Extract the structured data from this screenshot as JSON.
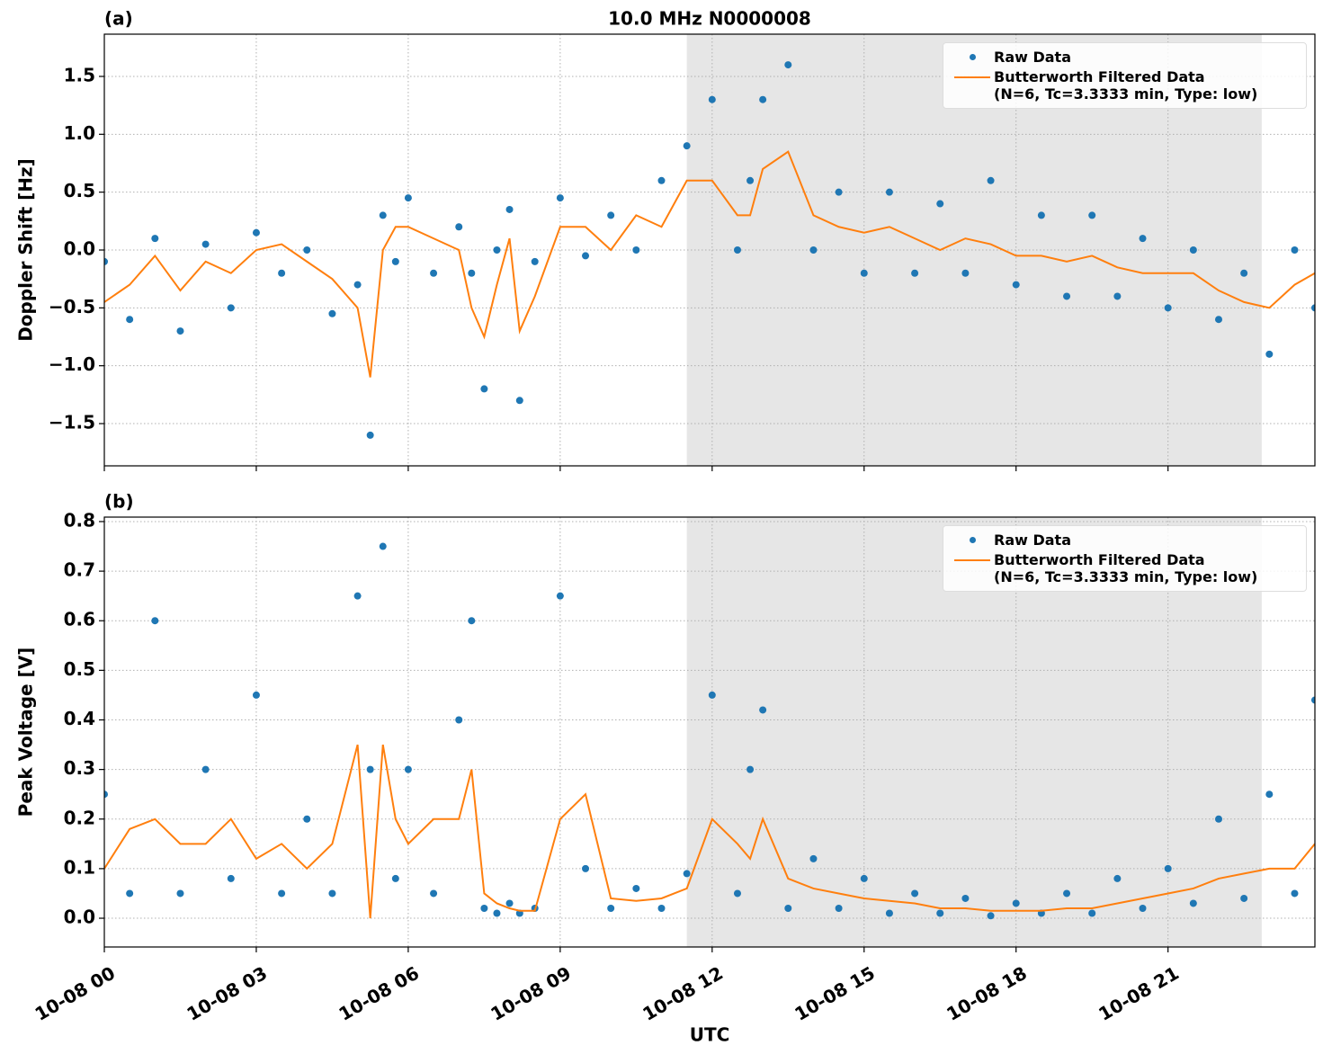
{
  "chart_data": [
    {
      "type": "line",
      "panel_label": "(a)",
      "title": "10.0 MHz N0000008",
      "ylabel": "Doppler Shift [Hz]",
      "x": [
        0,
        0.5,
        1,
        1.5,
        2,
        2.5,
        3,
        3.5,
        4,
        4.5,
        5,
        5.25,
        5.5,
        5.75,
        6,
        6.5,
        7,
        7.25,
        7.5,
        7.75,
        8,
        8.2,
        8.5,
        9,
        9.5,
        10,
        10.5,
        11,
        11.5,
        12,
        12.5,
        12.75,
        13,
        13.5,
        14,
        14.5,
        15,
        15.5,
        16,
        16.5,
        17,
        17.5,
        18,
        18.5,
        19,
        19.5,
        20,
        20.5,
        21,
        21.5,
        22,
        22.5,
        23,
        23.5,
        23.9
      ],
      "xlim": [
        0,
        23.9
      ],
      "xticks": [
        0,
        3,
        6,
        9,
        12,
        15,
        18,
        21
      ],
      "ylim": [
        -1.865,
        1.865
      ],
      "yticks": [
        {
          "value": -1.5,
          "label": "−1.5"
        },
        {
          "value": -1.0,
          "label": "−1.0"
        },
        {
          "value": -0.5,
          "label": "−0.5"
        },
        {
          "value": 0,
          "label": "0.0"
        },
        0.5,
        {
          "value": 1,
          "label": "1.0"
        },
        1.5
      ],
      "grid": true,
      "shade": [
        11.5,
        22.85
      ],
      "legend": "upper right",
      "series": [
        {
          "name": "Raw Data",
          "type": "scatter",
          "color": "#1f77b4",
          "values": [
            -0.1,
            -0.6,
            0.1,
            -0.7,
            0.05,
            -0.5,
            0.15,
            -0.2,
            0.0,
            -0.55,
            -0.3,
            -1.6,
            0.3,
            -0.1,
            0.45,
            -0.2,
            0.2,
            -0.2,
            -1.2,
            0.0,
            0.35,
            -1.3,
            -0.1,
            0.45,
            -0.05,
            0.3,
            0.0,
            0.6,
            0.9,
            1.3,
            0.0,
            0.6,
            1.3,
            1.6,
            0.0,
            0.5,
            -0.2,
            0.5,
            -0.2,
            0.4,
            -0.2,
            0.6,
            -0.3,
            0.3,
            -0.4,
            0.3,
            -0.4,
            0.1,
            -0.5,
            0.0,
            -0.6,
            -0.2,
            -0.9,
            0.0,
            -0.5
          ]
        },
        {
          "name": "Butterworth Filtered Data\n(N=6, Tc=3.3333 min, Type: low)",
          "type": "line",
          "color": "#ff7f0e",
          "values": [
            -0.45,
            -0.3,
            -0.05,
            -0.35,
            -0.1,
            -0.2,
            0.0,
            0.05,
            -0.1,
            -0.25,
            -0.5,
            -1.1,
            0.0,
            0.2,
            0.2,
            0.1,
            0.0,
            -0.5,
            -0.75,
            -0.3,
            0.1,
            -0.7,
            -0.4,
            0.2,
            0.2,
            0.0,
            0.3,
            0.2,
            0.6,
            0.6,
            0.3,
            0.3,
            0.7,
            0.85,
            0.3,
            0.2,
            0.15,
            0.2,
            0.1,
            0.0,
            0.1,
            0.05,
            -0.05,
            -0.05,
            -0.1,
            -0.05,
            -0.15,
            -0.2,
            -0.2,
            -0.2,
            -0.35,
            -0.45,
            -0.5,
            -0.3,
            -0.2
          ]
        }
      ]
    },
    {
      "type": "line",
      "panel_label": "(b)",
      "ylabel": "Peak Voltage [V]",
      "xlabel": "UTC",
      "x": [
        0,
        0.5,
        1,
        1.5,
        2,
        2.5,
        3,
        3.5,
        4,
        4.5,
        5,
        5.25,
        5.5,
        5.75,
        6,
        6.5,
        7,
        7.25,
        7.5,
        7.75,
        8,
        8.2,
        8.5,
        9,
        9.5,
        10,
        10.5,
        11,
        11.5,
        12,
        12.5,
        12.75,
        13,
        13.5,
        14,
        14.5,
        15,
        15.5,
        16,
        16.5,
        17,
        17.5,
        18,
        18.5,
        19,
        19.5,
        20,
        20.5,
        21,
        21.5,
        22,
        22.5,
        23,
        23.5,
        23.9
      ],
      "xlim": [
        0,
        23.9
      ],
      "xticks": [
        {
          "value": 0,
          "label": "10-08 00"
        },
        {
          "value": 3,
          "label": "10-08 03"
        },
        {
          "value": 6,
          "label": "10-08 06"
        },
        {
          "value": 9,
          "label": "10-08 09"
        },
        {
          "value": 12,
          "label": "10-08 12"
        },
        {
          "value": 15,
          "label": "10-08 15"
        },
        {
          "value": 18,
          "label": "10-08 18"
        },
        {
          "value": 21,
          "label": "10-08 21"
        }
      ],
      "ylim": [
        -0.058,
        0.809
      ],
      "yticks": [
        {
          "value": 0,
          "label": "0.0"
        },
        0.1,
        0.2,
        0.3,
        0.4,
        0.5,
        0.6,
        0.7,
        0.8
      ],
      "grid": true,
      "shade": [
        11.5,
        22.85
      ],
      "legend": "upper right",
      "series": [
        {
          "name": "Raw Data",
          "type": "scatter",
          "color": "#1f77b4",
          "values": [
            0.25,
            0.05,
            0.6,
            0.05,
            0.3,
            0.08,
            0.45,
            0.05,
            0.2,
            0.05,
            0.65,
            0.3,
            0.75,
            0.08,
            0.3,
            0.05,
            0.4,
            0.6,
            0.02,
            0.01,
            0.03,
            0.01,
            0.02,
            0.65,
            0.1,
            0.02,
            0.06,
            0.02,
            0.09,
            0.45,
            0.05,
            0.3,
            0.42,
            0.02,
            0.12,
            0.02,
            0.08,
            0.01,
            0.05,
            0.01,
            0.04,
            0.005,
            0.03,
            0.01,
            0.05,
            0.01,
            0.08,
            0.02,
            0.1,
            0.03,
            0.2,
            0.04,
            0.25,
            0.05,
            0.44
          ]
        },
        {
          "name": "Butterworth Filtered Data\n(N=6, Tc=3.3333 min, Type: low)",
          "type": "line",
          "color": "#ff7f0e",
          "values": [
            0.1,
            0.18,
            0.2,
            0.15,
            0.15,
            0.2,
            0.12,
            0.15,
            0.1,
            0.15,
            0.35,
            0.0,
            0.35,
            0.2,
            0.15,
            0.2,
            0.2,
            0.3,
            0.05,
            0.03,
            0.02,
            0.015,
            0.015,
            0.2,
            0.25,
            0.04,
            0.035,
            0.04,
            0.06,
            0.2,
            0.15,
            0.12,
            0.2,
            0.08,
            0.06,
            0.05,
            0.04,
            0.035,
            0.03,
            0.02,
            0.02,
            0.015,
            0.015,
            0.015,
            0.02,
            0.02,
            0.03,
            0.04,
            0.05,
            0.06,
            0.08,
            0.09,
            0.1,
            0.1,
            0.15
          ]
        }
      ]
    }
  ]
}
